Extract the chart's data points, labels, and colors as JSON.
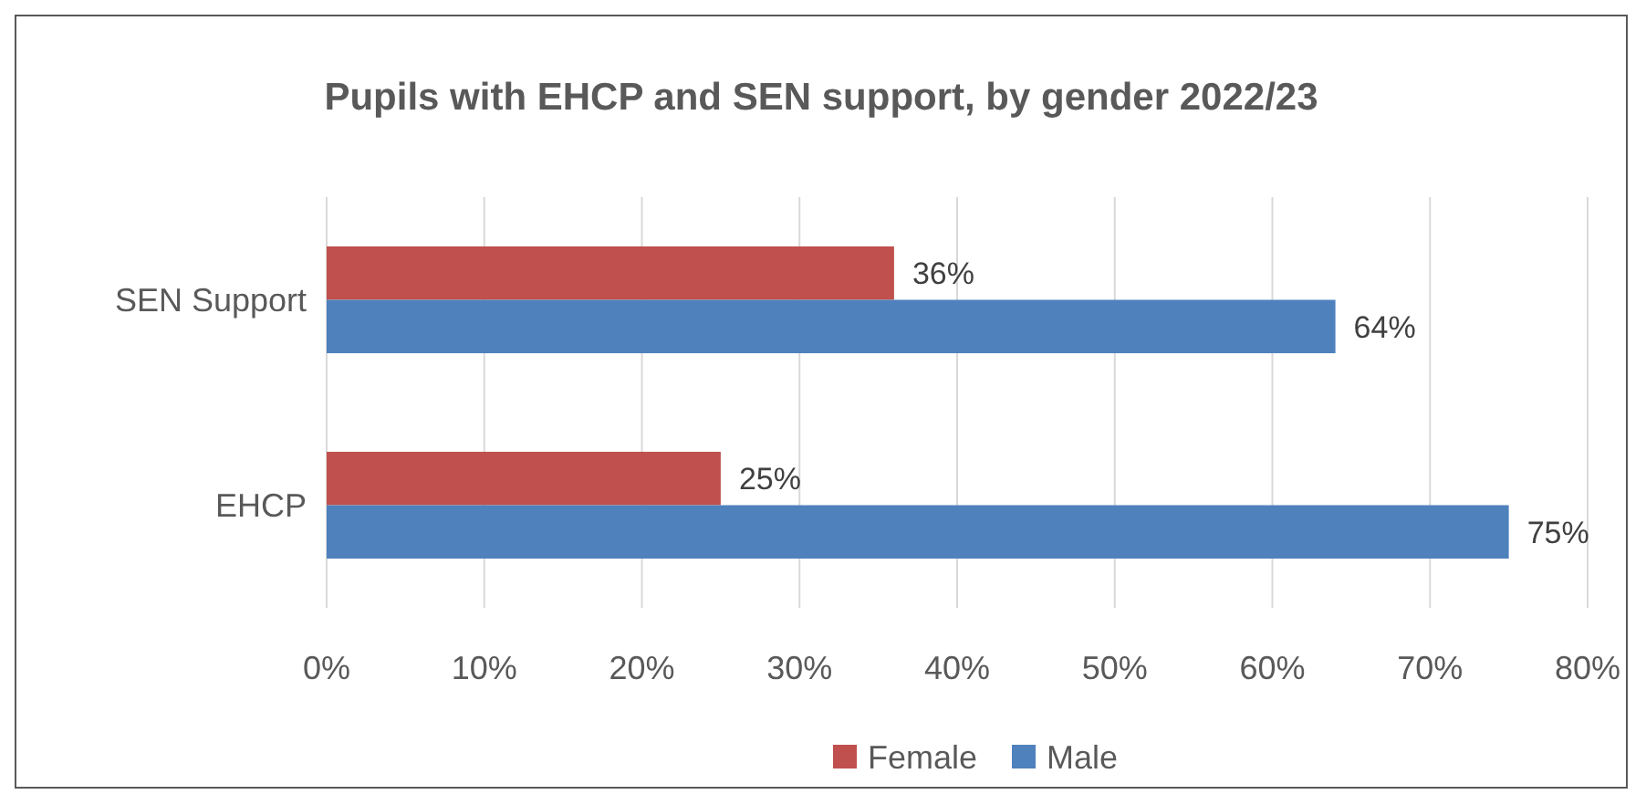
{
  "chart_data": {
    "type": "bar",
    "orientation": "horizontal",
    "title": "Pupils with EHCP and SEN support, by gender 2022/23",
    "categories": [
      "SEN Support",
      "EHCP"
    ],
    "series": [
      {
        "name": "Female",
        "color": "#c0504d",
        "values": [
          36,
          25
        ],
        "value_labels": [
          "36%",
          "25%"
        ]
      },
      {
        "name": "Male",
        "color": "#4f81bd",
        "values": [
          64,
          75
        ],
        "value_labels": [
          "64%",
          "75%"
        ]
      }
    ],
    "xlim": [
      0,
      80
    ],
    "xticks": [
      {
        "value": 0,
        "label": "0%"
      },
      {
        "value": 10,
        "label": "10%"
      },
      {
        "value": 20,
        "label": "20%"
      },
      {
        "value": 30,
        "label": "30%"
      },
      {
        "value": 40,
        "label": "40%"
      },
      {
        "value": 50,
        "label": "50%"
      },
      {
        "value": 60,
        "label": "60%"
      },
      {
        "value": 70,
        "label": "70%"
      },
      {
        "value": 80,
        "label": "80%"
      }
    ],
    "grid": "x",
    "legend": "bottom"
  }
}
